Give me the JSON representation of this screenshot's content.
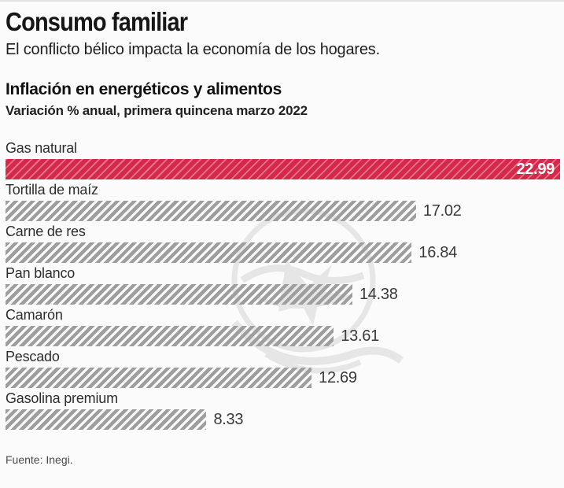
{
  "header": {
    "title": "Consumo familiar",
    "subtitle": "El conflicto bélico impacta la economía de los hogares."
  },
  "chart": {
    "heading": "Inflación en energéticos y alimentos",
    "subheading": "Variación % anual, primera quincena marzo 2022",
    "source": "Fuente: Inegi."
  },
  "chart_data": {
    "type": "bar",
    "orientation": "horizontal",
    "title": "Inflación en energéticos y alimentos",
    "subtitle": "Variación % anual, primera quincena marzo 2022",
    "categories": [
      "Gas natural",
      "Tortilla de maíz",
      "Carne de res",
      "Pan blanco",
      "Camarón",
      "Pescado",
      "Gasolina premium"
    ],
    "values": [
      22.99,
      17.02,
      16.84,
      14.38,
      13.61,
      12.69,
      8.33
    ],
    "value_labels": [
      "22.99",
      "17.02",
      "16.84",
      "14.38",
      "13.61",
      "12.69",
      "8.33"
    ],
    "xlim": [
      0,
      22.99
    ],
    "grid": false,
    "legend": "none",
    "highlight_index": 0,
    "highlight_color": "#d4294a",
    "bar_stripe_color": "#9e9e9e",
    "value_text_color": "#3a3a3a",
    "highlight_value_text_color": "#ffffff",
    "source": "Fuente: Inegi."
  },
  "watermark": {
    "name": "eagle-watermark"
  }
}
